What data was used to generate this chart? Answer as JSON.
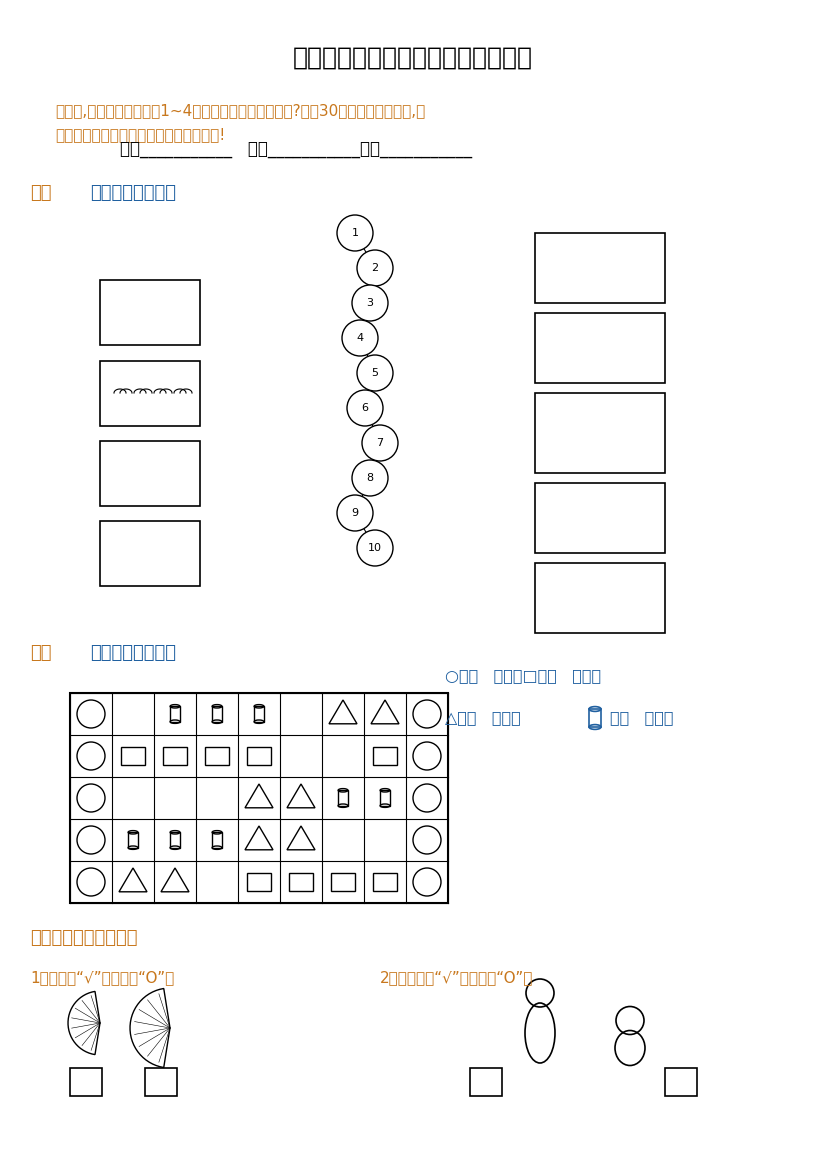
{
  "title": "一年级（上）第一四单元学习力检测",
  "title_color": "#000000",
  "title_fontsize": 18,
  "subtitle": "小朋友,我们已经学习完了1~4单元的内容，你学得怎样?请用30分钟完成这张试卷,相\n信你一定能行。先写上你的班级和姓名吧!",
  "subtitle_color": "#c8781e",
  "subtitle_fontsize": 11,
  "fields_line": "姓名___________   班级___________成绩___________",
  "section1_label": "一、",
  "section1_text": "想一想，连一连。",
  "section2_label": "二、",
  "section2_text": "数一数，填一填。",
  "section3_label": "三、比一比，填一填。",
  "section3_sub1": "1、大的画“√”，小的画“O”。",
  "section3_sub2": "2、高大的画“√”，矮的画“O”。",
  "label_color": "#c8781e",
  "text_color": "#2060a0",
  "background_color": "#ffffff",
  "numbers_on_circles": [
    "1",
    "2",
    "3",
    "4",
    "5",
    "6",
    "7",
    "8",
    "9",
    "10"
  ]
}
